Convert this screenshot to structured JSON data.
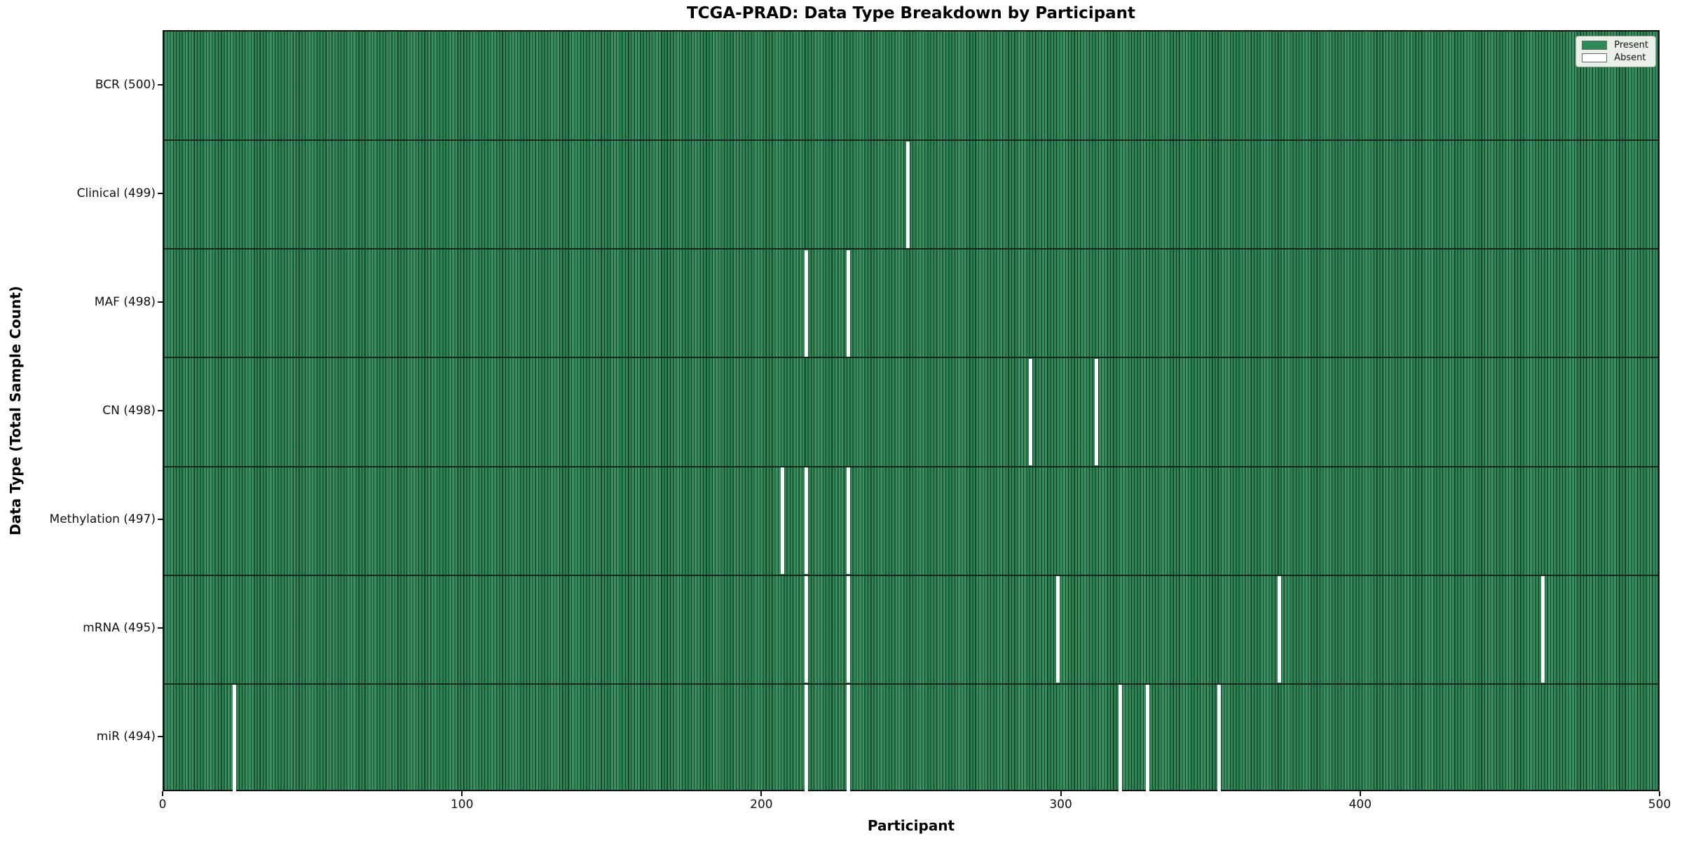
{
  "title": "TCGA-PRAD: Data Type Breakdown by Participant",
  "x_axis_title": "Participant",
  "y_axis_title": "Data Type (Total Sample Count)",
  "legend": {
    "present_label": "Present",
    "absent_label": "Absent"
  },
  "colors": {
    "present": "#2e8b57",
    "absent": "#ffffff",
    "bar_edge": "#0d301e",
    "row_divider": "#16281d",
    "legend_bg": "#e9efe9"
  },
  "chart_data": {
    "type": "heatmap",
    "title": "TCGA-PRAD: Data Type Breakdown by Participant",
    "xlabel": "Participant",
    "ylabel": "Data Type (Total Sample Count)",
    "x_range": [
      0,
      500
    ],
    "x_ticks": [
      0,
      100,
      200,
      300,
      400,
      500
    ],
    "n_participants": 500,
    "grid": false,
    "legend_position": "upper right",
    "legend_entries": [
      {
        "label": "Present",
        "color": "#2e8b57"
      },
      {
        "label": "Absent",
        "color": "#ffffff"
      }
    ],
    "rows": [
      {
        "label": "BCR (500)",
        "data_type": "BCR",
        "present_count": 500,
        "absent_participants": []
      },
      {
        "label": "Clinical (499)",
        "data_type": "Clinical",
        "present_count": 499,
        "absent_participants": [
          248
        ]
      },
      {
        "label": "MAF (498)",
        "data_type": "MAF",
        "present_count": 498,
        "absent_participants": [
          214,
          228
        ]
      },
      {
        "label": "CN (498)",
        "data_type": "CN",
        "present_count": 498,
        "absent_participants": [
          289,
          311
        ]
      },
      {
        "label": "Methylation (497)",
        "data_type": "Methylation",
        "present_count": 497,
        "absent_participants": [
          206,
          214,
          228
        ]
      },
      {
        "label": "mRNA (495)",
        "data_type": "mRNA",
        "present_count": 495,
        "absent_participants": [
          214,
          228,
          298,
          372,
          460
        ]
      },
      {
        "label": "miR (494)",
        "data_type": "miR",
        "present_count": 494,
        "absent_participants": [
          23,
          214,
          228,
          319,
          328,
          352
        ]
      }
    ]
  }
}
